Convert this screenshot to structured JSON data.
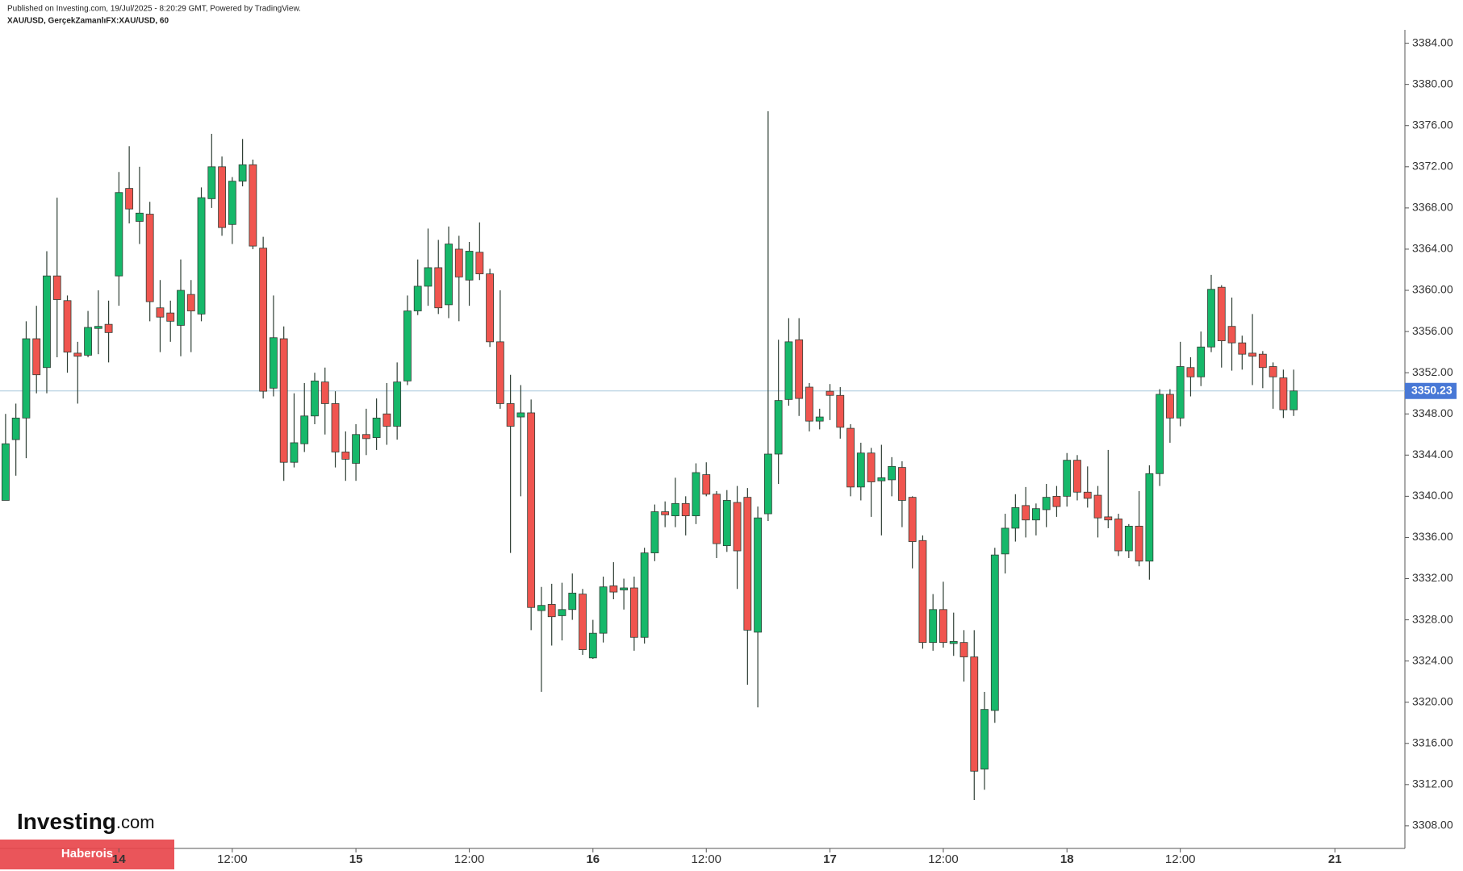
{
  "header": {
    "published": "Published on Investing.com, 19/Jul/2025 - 8:20:29 GMT, Powered by TradingView.",
    "symbol": "XAU/USD, GerçekZamanlıFX:XAU/USD, 60"
  },
  "watermark": {
    "logo": "Investing",
    "logo_suffix": ".com",
    "banner": "Haberois"
  },
  "chart_data": {
    "type": "candlestick",
    "categories": [
      null,
      null,
      null,
      null,
      null,
      null,
      null,
      null,
      null,
      null,
      null,
      null,
      null,
      null,
      null,
      null,
      null,
      null,
      null,
      null,
      null,
      null,
      null,
      null,
      null,
      null,
      null,
      null,
      null,
      null,
      null,
      null,
      null,
      null,
      null,
      null,
      null,
      null,
      null,
      null,
      null,
      null,
      null,
      null,
      null,
      null,
      null,
      null,
      null,
      null,
      null,
      null,
      null,
      null,
      null,
      null,
      null,
      null,
      null,
      null,
      null,
      null,
      null,
      null,
      null,
      null,
      null,
      null,
      null,
      null,
      null,
      null,
      null,
      null,
      null,
      null,
      null,
      null,
      null,
      null,
      null,
      null,
      null,
      null,
      null,
      null,
      null,
      null,
      null,
      null,
      null,
      null,
      null,
      null,
      null,
      null,
      null,
      null,
      null,
      null,
      null,
      null,
      null,
      null,
      null,
      null,
      null,
      null,
      null,
      null,
      null,
      null,
      null,
      null,
      null,
      null,
      null,
      null,
      null,
      null,
      null,
      null,
      null,
      null,
      null,
      null
    ],
    "open": [
      3339.6,
      3345.5,
      3347.6,
      3355.3,
      3352.5,
      3361.4,
      3359,
      3353.9,
      3353.7,
      3356.3,
      3356.7,
      3361.4,
      3369.9,
      3366.7,
      3367.4,
      3358.3,
      3357.8,
      3356.6,
      3359.6,
      3357.7,
      3368.9,
      3372,
      3366.4,
      3370.6,
      3372.2,
      3364.1,
      3350.5,
      3355.3,
      3343.3,
      3345.1,
      3347.8,
      3351.1,
      3349,
      3344.3,
      3343.2,
      3346,
      3345.7,
      3348,
      3346.8,
      3351.2,
      3358,
      3360.4,
      3362.2,
      3358.6,
      3364,
      3361,
      3363.7,
      3361.6,
      3355,
      3349,
      3347.7,
      3348.1,
      3328.9,
      3329.5,
      3328.4,
      3329,
      3330.5,
      3324.3,
      3326.7,
      3331.3,
      3330.9,
      3331.1,
      3326.3,
      3334.5,
      3338.5,
      3338.1,
      3339.3,
      3338.1,
      3342.1,
      3340.2,
      3335.2,
      3339.4,
      3339.9,
      3326.8,
      3338.3,
      3344.1,
      3349.4,
      3355.2,
      3350.6,
      3347.3,
      3350.2,
      3349.8,
      3346.6,
      3340.9,
      3344.2,
      3341.5,
      3341.6,
      3342.8,
      3339.9,
      3335.7,
      3325.8,
      3329,
      3325.7,
      3325.8,
      3324.4,
      3313.5,
      3319.2,
      3334.4,
      3336.9,
      3339.1,
      3337.7,
      3338.7,
      3340,
      3340,
      3343.5,
      3340.4,
      3340.1,
      3338,
      3337.8,
      3334.7,
      3337.1,
      3333.7,
      3342.2,
      3349.9,
      3347.6,
      3352.5,
      3351.6,
      3354.5,
      3360.3,
      3356.5,
      3354.9,
      3353.9,
      3353.8,
      3352.6,
      3351.5,
      3348.4
    ],
    "high": [
      3348,
      3349,
      3357,
      3358.5,
      3363.8,
      3369,
      3359.5,
      3355,
      3358,
      3360,
      3359,
      3371.5,
      3374,
      3372,
      3368.6,
      3361,
      3359,
      3363,
      3361,
      3370,
      3375.2,
      3373,
      3371,
      3374.7,
      3372.7,
      3365.2,
      3359.5,
      3356.5,
      3350,
      3351,
      3352,
      3352.5,
      3350.2,
      3346.3,
      3347,
      3348.5,
      3349.5,
      3351,
      3353,
      3359.5,
      3363,
      3366,
      3364.9,
      3366.2,
      3365.3,
      3364.7,
      3366.6,
      3362.1,
      3360,
      3351.8,
      3350.8,
      3349.4,
      3331.2,
      3331.5,
      3331.6,
      3332.5,
      3331,
      3328,
      3332.2,
      3333.6,
      3332,
      3332.2,
      3335,
      3339.2,
      3339.5,
      3341.8,
      3340,
      3343.2,
      3343.3,
      3340.5,
      3340.6,
      3341,
      3340.8,
      3339,
      3377.4,
      3355.2,
      3357.3,
      3357.3,
      3351,
      3348.5,
      3350.9,
      3350.6,
      3347,
      3345.2,
      3344.7,
      3345,
      3343.8,
      3343.4,
      3340,
      3336.2,
      3330.5,
      3331.7,
      3328.7,
      3327,
      3327,
      3321,
      3335,
      3338.3,
      3340.2,
      3340.9,
      3339.3,
      3341.2,
      3341,
      3344.2,
      3344,
      3342.9,
      3341,
      3344.5,
      3338.3,
      3337.3,
      3340.5,
      3343,
      3350.4,
      3350.4,
      3355,
      3353.5,
      3356,
      3361.5,
      3360.5,
      3359.3,
      3355.6,
      3357.7,
      3354.1,
      3353,
      3352.3,
      3352.3
    ],
    "low": [
      3339.6,
      3342,
      3343.7,
      3350,
      3350,
      3353.5,
      3352,
      3349,
      3353.5,
      3353.8,
      3353,
      3358.5,
      3366.5,
      3364.5,
      3357,
      3354,
      3355,
      3353.6,
      3354,
      3357,
      3368,
      3365.3,
      3364.5,
      3370.1,
      3364,
      3349.5,
      3349.7,
      3341.5,
      3342.8,
      3344.3,
      3347,
      3346,
      3342.8,
      3341.5,
      3341.5,
      3344,
      3344.5,
      3345,
      3345.5,
      3350.8,
      3357.6,
      3358.5,
      3357.7,
      3357.3,
      3357,
      3358.5,
      3361,
      3354.5,
      3348.5,
      3334.5,
      3340,
      3327,
      3321,
      3325.5,
      3326,
      3328,
      3324.6,
      3324.2,
      3325.8,
      3330,
      3329,
      3325,
      3325.7,
      3333.7,
      3337,
      3337,
      3336.2,
      3337.3,
      3340,
      3334,
      3334.6,
      3331,
      3321.7,
      3319.5,
      3337.6,
      3341.2,
      3348.8,
      3347.8,
      3346.3,
      3346.5,
      3347.4,
      3345.6,
      3340,
      3339.6,
      3338,
      3336.2,
      3340,
      3337,
      3333,
      3325.2,
      3325,
      3325.3,
      3324.5,
      3322,
      3310.5,
      3311.5,
      3318,
      3332.5,
      3335.6,
      3336,
      3336.2,
      3337,
      3338,
      3339,
      3339.6,
      3338.9,
      3336,
      3336.9,
      3334.2,
      3334,
      3333.2,
      3331.9,
      3341,
      3345.2,
      3346.8,
      3349.7,
      3350.7,
      3354,
      3352.5,
      3352.2,
      3352.3,
      3350.8,
      3350.5,
      3348.5,
      3347.6,
      3347.8
    ],
    "close": [
      3345.1,
      3347.6,
      3355.3,
      3351.8,
      3361.4,
      3359.1,
      3354,
      3353.6,
      3356.4,
      3356.5,
      3355.9,
      3369.5,
      3367.9,
      3367.5,
      3358.9,
      3357.4,
      3357,
      3360,
      3358,
      3369,
      3372,
      3366.1,
      3370.6,
      3372.2,
      3364.3,
      3350.2,
      3355.4,
      3343.3,
      3345.2,
      3347.8,
      3351.2,
      3349,
      3344.3,
      3343.6,
      3346,
      3345.6,
      3347.6,
      3346.8,
      3351.1,
      3358,
      3360.4,
      3362.2,
      3358.3,
      3364.5,
      3361.3,
      3363.8,
      3361.6,
      3355,
      3349,
      3346.8,
      3348.1,
      3329.2,
      3329.4,
      3328.3,
      3329,
      3330.6,
      3325.1,
      3326.7,
      3331.2,
      3330.7,
      3331.1,
      3326.3,
      3334.5,
      3338.5,
      3338.2,
      3339.3,
      3338.1,
      3342.3,
      3340.2,
      3335.4,
      3339.6,
      3334.7,
      3327,
      3337.9,
      3344.1,
      3349.3,
      3355,
      3349.5,
      3347.3,
      3347.7,
      3349.8,
      3346.7,
      3340.9,
      3344.2,
      3341.4,
      3341.8,
      3342.9,
      3339.6,
      3335.6,
      3325.8,
      3329,
      3325.8,
      3325.9,
      3324.4,
      3313.3,
      3319.3,
      3334.3,
      3336.9,
      3338.9,
      3337.7,
      3338.8,
      3339.9,
      3339,
      3343.5,
      3340.4,
      3339.8,
      3337.9,
      3337.7,
      3334.7,
      3337.1,
      3333.7,
      3342.2,
      3349.9,
      3347.6,
      3352.6,
      3351.6,
      3354.5,
      3360.1,
      3355.1,
      3354.9,
      3353.8,
      3353.6,
      3352.5,
      3351.6,
      3348.4,
      3350.23
    ],
    "up_color": "#16b86a",
    "down_color": "#f0554f",
    "wick_color": "#2f3f35",
    "last_price": 3350.23,
    "last_price_color": "#4878d6",
    "ylim": [
      3305.8,
      3385.3
    ],
    "yticks": [
      {
        "value": 3308,
        "label": "3308.00"
      },
      {
        "value": 3312,
        "label": "3312.00"
      },
      {
        "value": 3316,
        "label": "3316.00"
      },
      {
        "value": 3320,
        "label": "3320.00"
      },
      {
        "value": 3324,
        "label": "3324.00"
      },
      {
        "value": 3328,
        "label": "3328.00"
      },
      {
        "value": 3332,
        "label": "3332.00"
      },
      {
        "value": 3336,
        "label": "3336.00"
      },
      {
        "value": 3340,
        "label": "3340.00"
      },
      {
        "value": 3344,
        "label": "3344.00"
      },
      {
        "value": 3348,
        "label": "3348.00"
      },
      {
        "value": 3352,
        "label": "3352.00"
      },
      {
        "value": 3356,
        "label": "3356.00"
      },
      {
        "value": 3360,
        "label": "3360.00"
      },
      {
        "value": 3364,
        "label": "3364.00"
      },
      {
        "value": 3368,
        "label": "3368.00"
      },
      {
        "value": 3372,
        "label": "3372.00"
      },
      {
        "value": 3376,
        "label": "3376.00"
      },
      {
        "value": 3380,
        "label": "3380.00"
      },
      {
        "value": 3384,
        "label": "3384.00"
      }
    ],
    "xticks": [
      {
        "value": 11,
        "label": "14"
      },
      {
        "value": 22,
        "label": "12:00"
      },
      {
        "value": 34,
        "label": "15"
      },
      {
        "value": 45,
        "label": "12:00"
      },
      {
        "value": 57,
        "label": "16"
      },
      {
        "value": 68,
        "label": "12:00"
      },
      {
        "value": 80,
        "label": "17"
      },
      {
        "value": 91,
        "label": "12:00"
      },
      {
        "value": 103,
        "label": "18"
      },
      {
        "value": 114,
        "label": "12:00"
      },
      {
        "value": 129,
        "label": "21"
      }
    ],
    "grid": false
  }
}
